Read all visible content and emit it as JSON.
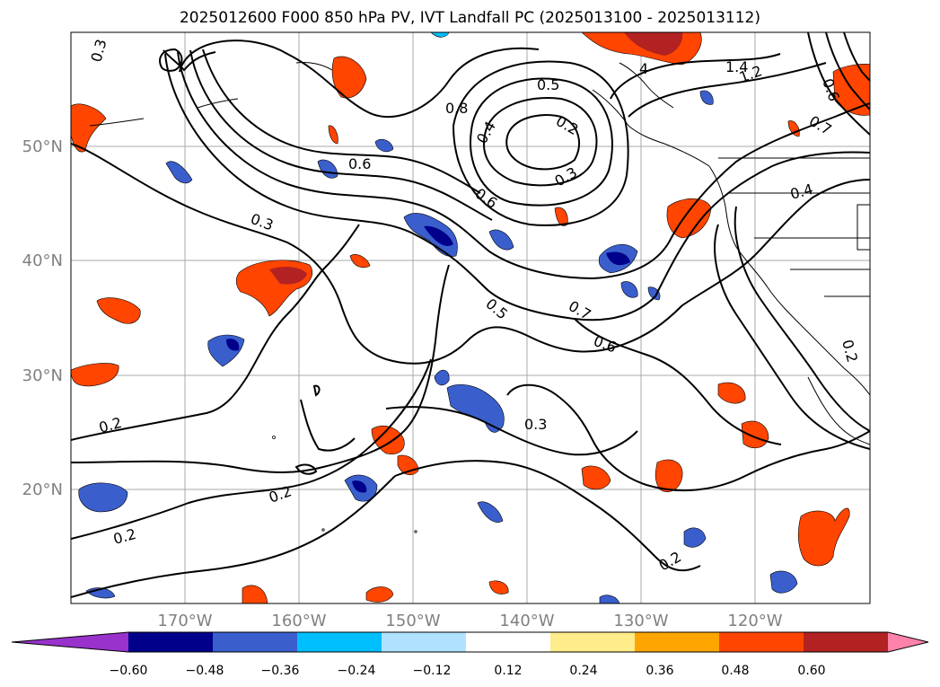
{
  "title": "2025012600 F000 850 hPa PV, IVT Landfall PC (2025013100 - 2025013112)",
  "map": {
    "projection": "lat-lon",
    "lon_range": [
      -180,
      -110
    ],
    "lat_range": [
      10,
      60
    ],
    "grid": true,
    "lon_tick_labels": [
      "170°W",
      "160°W",
      "150°W",
      "140°W",
      "130°W",
      "120°W"
    ],
    "lat_tick_labels": [
      "50°N",
      "40°N",
      "30°N",
      "20°N"
    ],
    "label_color": "#808080"
  },
  "contour_labels": [
    "0.3",
    "0.3",
    "0.6",
    "0.5",
    "0.8",
    "0.4",
    "0.2",
    "0.3",
    "0.6",
    "0.5",
    "0.7",
    "0.6",
    "0.3",
    "0.2",
    "0.2",
    "0.2",
    "0.2",
    "0.2",
    "1.4",
    "1.2",
    "4",
    "0.4",
    "0.7",
    "0.6"
  ],
  "colorbar": {
    "orientation": "horizontal",
    "extend": "both",
    "tick_labels": [
      "−0.60",
      "−0.48",
      "−0.36",
      "−0.24",
      "−0.12",
      "0.12",
      "0.24",
      "0.36",
      "0.48",
      "0.60"
    ],
    "colors": [
      "#9932CC",
      "#00008B",
      "#3A5FCD",
      "#00BFFF",
      "#B0E2FF",
      "#FFFFFF",
      "#FFEC8B",
      "#FFA500",
      "#FF4500",
      "#B22222",
      "#FF82AB"
    ]
  }
}
